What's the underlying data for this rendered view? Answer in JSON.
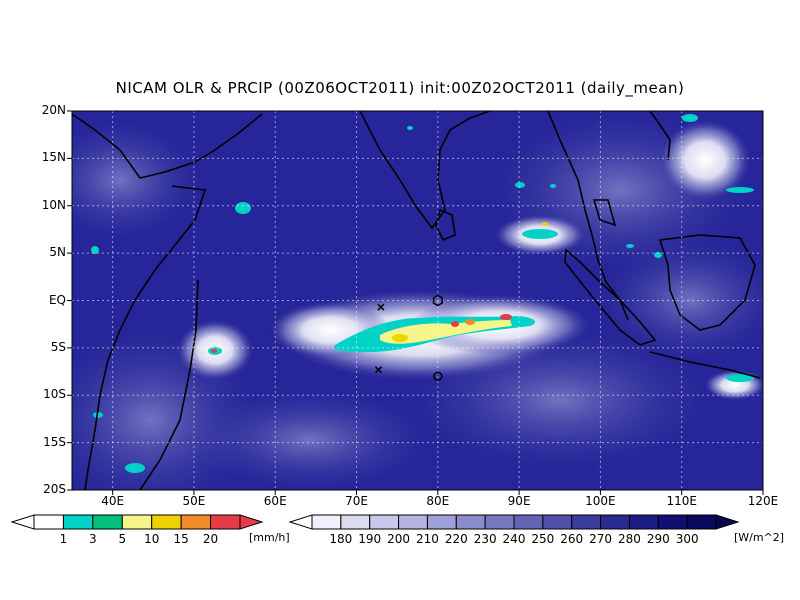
{
  "title": "NICAM OLR & PRCIP (00Z06OCT2011) init:00Z02OCT2011 (daily_mean)",
  "map": {
    "lat_labels": [
      "20N",
      "15N",
      "10N",
      "5N",
      "EQ",
      "5S",
      "10S",
      "15S",
      "20S"
    ],
    "lon_labels": [
      "40E",
      "50E",
      "60E",
      "70E",
      "80E",
      "90E",
      "100E",
      "110E",
      "120E"
    ],
    "lon_range": [
      35,
      120
    ],
    "lat_range": [
      -20,
      20
    ],
    "grid": "dotted",
    "markers": [
      {
        "symbol": "x",
        "lon": 73,
        "lat": -0.7
      },
      {
        "symbol": "x",
        "lon": 72.7,
        "lat": -7.3
      },
      {
        "symbol": "hexagon",
        "lon": 80,
        "lat": 0
      },
      {
        "symbol": "circle",
        "lon": 80,
        "lat": -8
      }
    ]
  },
  "precip_colorbar": {
    "labels": [
      "1",
      "3",
      "5",
      "10",
      "15",
      "20"
    ],
    "unit": "[mm/h]",
    "colors": [
      "#00d2c8",
      "#00c07a",
      "#f5f58a",
      "#f0d200",
      "#f08c28",
      "#e63c46"
    ]
  },
  "olr_colorbar": {
    "labels": [
      "180",
      "190",
      "200",
      "210",
      "220",
      "230",
      "240",
      "250",
      "260",
      "270",
      "280",
      "290",
      "300"
    ],
    "unit": "[W/m^2]",
    "colors": [
      "#f0f0fa",
      "#dcdcf0",
      "#c8c8e8",
      "#b4b4e0",
      "#a0a0d8",
      "#8c8ccc",
      "#7878c0",
      "#6464b4",
      "#5050a8",
      "#3c3c9c",
      "#2a2a90",
      "#1c1c82",
      "#101074",
      "#08085c"
    ]
  }
}
